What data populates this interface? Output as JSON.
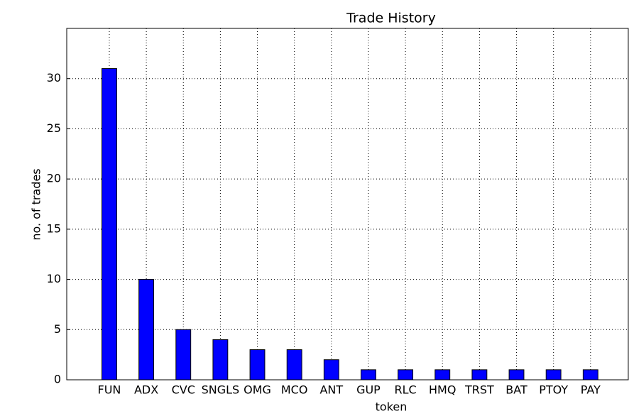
{
  "chart_data": {
    "type": "bar",
    "title": "Trade History",
    "x_label": "token",
    "y_label": "no. of trades",
    "categories": [
      "FUN",
      "ADX",
      "CVC",
      "SNGLS",
      "OMG",
      "MCO",
      "ANT",
      "GUP",
      "RLC",
      "HMQ",
      "TRST",
      "BAT",
      "PTOY",
      "PAY"
    ],
    "values": [
      31,
      10,
      5,
      4,
      3,
      3,
      2,
      1,
      1,
      1,
      1,
      1,
      1,
      1
    ],
    "color": "#0000ff",
    "ylim": [
      0,
      35
    ],
    "yticks": [
      0,
      5,
      10,
      15,
      20,
      25,
      30
    ],
    "grid": true
  }
}
